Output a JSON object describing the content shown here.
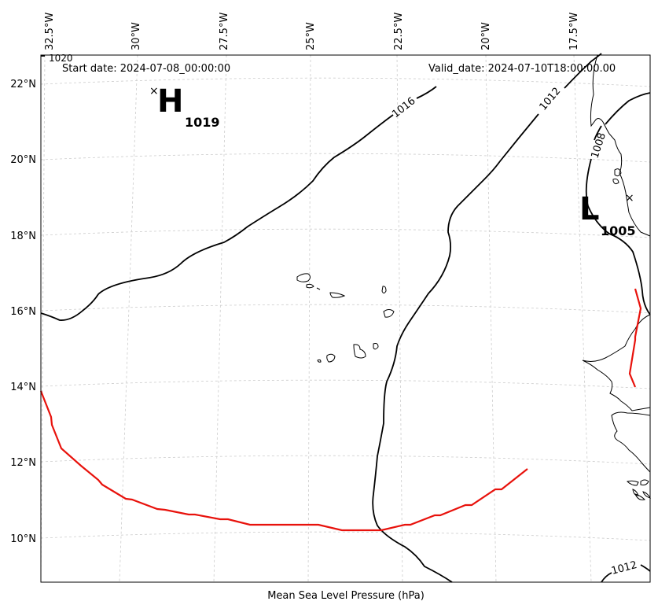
{
  "map": {
    "start_label": "Start date: 2024-07-08_00:00:00",
    "valid_label": "Valid_date: 2024-07-10T18:00:00.00",
    "footer_label": "Mean Sea Level Pressure (hPa)",
    "top_lon_labels": [
      "32.5°W",
      "30°W",
      "27.5°W",
      "25°W",
      "22.5°W",
      "20°W",
      "17.5°W"
    ],
    "left_lat_labels": [
      "22°N",
      "20°N",
      "18°N",
      "16°N",
      "14°N",
      "12°N",
      "10°N"
    ],
    "contour_labels": [
      "1020",
      "1016",
      "1012",
      "1008",
      "1012"
    ],
    "high_center": {
      "letter": "H",
      "pressure": "1019"
    },
    "low_center": {
      "letter": "L",
      "pressure": "1005"
    },
    "colors": {
      "isobar": "#000000",
      "track": "#e8120c",
      "grid": "#cccccc",
      "land": "#000000"
    }
  }
}
